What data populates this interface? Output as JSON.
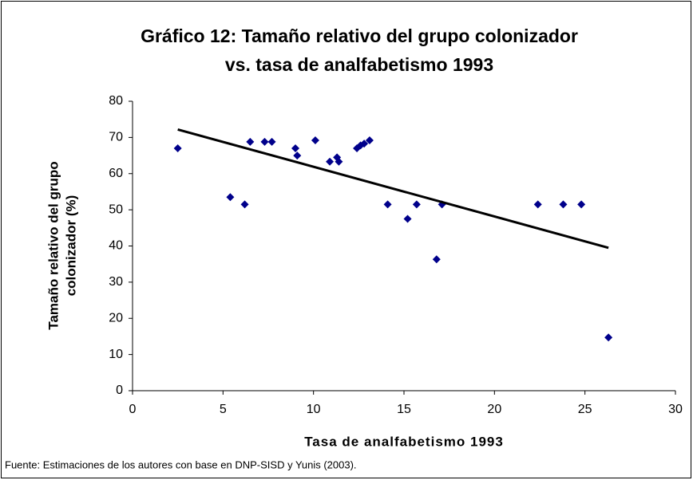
{
  "chart_data": {
    "type": "scatter",
    "title": [
      "Gráfico 12: Tamaño relativo del grupo colonizador",
      "vs. tasa de analfabetismo 1993"
    ],
    "xlabel": "Tasa de analfabetismo 1993",
    "ylabel": [
      "Tamaño relativo del grupo",
      "colonizador (%)"
    ],
    "source": "Fuente: Estimaciones de los autores con base en DNP-SISD y Yunis (2003).",
    "x": [
      2.5,
      5.4,
      6.2,
      6.5,
      7.3,
      7.7,
      9.0,
      9.1,
      10.1,
      10.9,
      11.3,
      11.4,
      12.4,
      12.6,
      12.8,
      13.1,
      14.1,
      15.2,
      15.7,
      16.8,
      17.1,
      22.4,
      23.8,
      24.8,
      26.3
    ],
    "values": [
      67,
      53.5,
      51.5,
      68.8,
      68.8,
      68.8,
      67,
      65,
      69.2,
      63.3,
      64.5,
      63.3,
      67,
      67.8,
      68.3,
      69.2,
      51.5,
      47.5,
      51.5,
      36.3,
      51.5,
      51.5,
      51.5,
      51.5,
      14.7
    ],
    "color": "#00008b",
    "trendline": {
      "x": [
        2.5,
        26.3
      ],
      "values": [
        72.2,
        39.5
      ],
      "color": "#000000"
    },
    "xlim": [
      0,
      30
    ],
    "xticks": [
      0,
      5,
      10,
      15,
      20,
      25,
      30
    ],
    "ylim": [
      0,
      80
    ],
    "yticks": [
      0,
      10,
      20,
      30,
      40,
      50,
      60,
      70,
      80
    ]
  }
}
